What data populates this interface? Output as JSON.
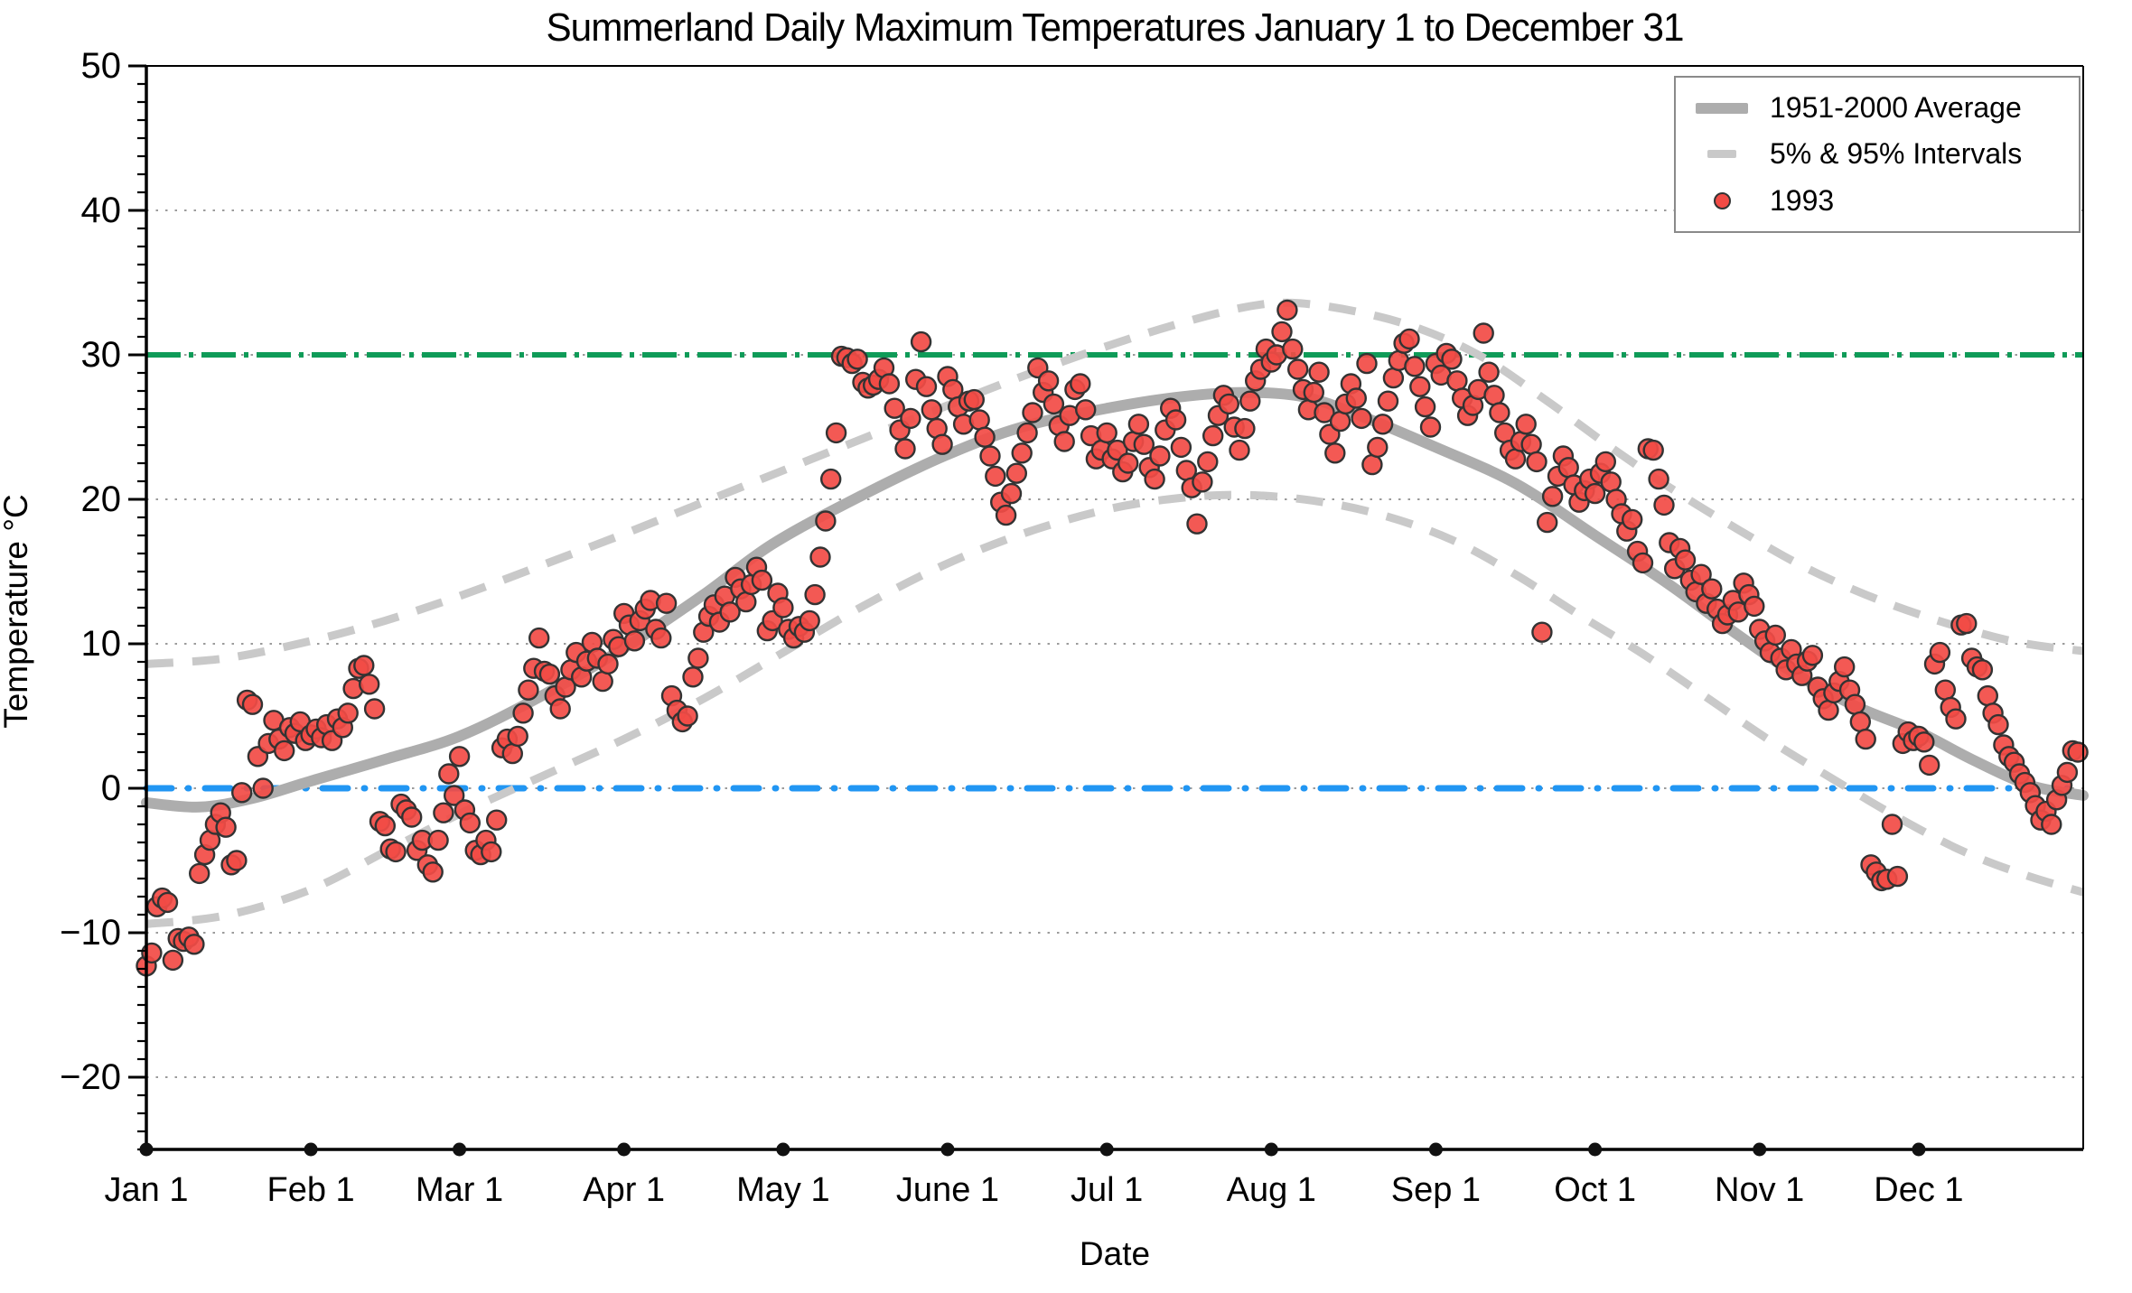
{
  "chart_data": {
    "type": "scatter",
    "title": "Summerland Daily Maximum Temperatures January 1 to December 31",
    "xlabel": "Date",
    "ylabel": "Temperature °C",
    "legend": {
      "items": [
        {
          "label": "1951-2000 Average",
          "swatch": "thick-gray-line"
        },
        {
          "label": "5% & 95% Intervals",
          "swatch": "gray-dash"
        },
        {
          "label": "1993",
          "swatch": "red-dot"
        }
      ]
    },
    "colors": {
      "average_line": "#adadad",
      "interval_line": "#c9c9c9",
      "point_fill": "#f24b45",
      "point_edge": "#333333",
      "green_ref": "#0f9b58",
      "blue_ref": "#2196f3",
      "grid": "#9b9b9b",
      "axis": "#000000"
    },
    "y_axis": {
      "min": -25,
      "max": 50,
      "major_ticks": [
        {
          "v": -20,
          "label": "−20"
        },
        {
          "v": -10,
          "label": "−10"
        },
        {
          "v": 0,
          "label": "0"
        },
        {
          "v": 10,
          "label": "10"
        },
        {
          "v": 20,
          "label": "20"
        },
        {
          "v": 30,
          "label": "30"
        },
        {
          "v": 40,
          "label": "40"
        },
        {
          "v": 50,
          "label": "50"
        }
      ],
      "minor_step": 1.25,
      "gridline_values": [
        -20,
        -10,
        0,
        10,
        20,
        30,
        40
      ],
      "grid_style": "dotted"
    },
    "x_axis": {
      "days_total": 365,
      "month_start_days": [
        0,
        31,
        59,
        90,
        120,
        151,
        181,
        212,
        243,
        273,
        304,
        334
      ],
      "month_labels": [
        "Jan 1",
        "Feb 1",
        "Mar 1",
        "Apr 1",
        "May 1",
        "June 1",
        "Jul 1",
        "Aug 1",
        "Sep 1",
        "Oct 1",
        "Nov 1",
        "Dec 1"
      ]
    },
    "ref_lines": [
      {
        "value": 30,
        "style": "dash-dot",
        "color_key": "green_ref"
      },
      {
        "value": 0,
        "style": "dash-dot-round",
        "color_key": "blue_ref"
      }
    ],
    "series": {
      "average_1951_2000": {
        "anchors": [
          [
            0,
            -1.0
          ],
          [
            10,
            -1.3
          ],
          [
            20,
            -0.7
          ],
          [
            31,
            0.5
          ],
          [
            45,
            2.0
          ],
          [
            59,
            3.6
          ],
          [
            74,
            6.3
          ],
          [
            90,
            9.7
          ],
          [
            105,
            13.4
          ],
          [
            118,
            16.9
          ],
          [
            135,
            20.3
          ],
          [
            151,
            23.1
          ],
          [
            165,
            25.0
          ],
          [
            181,
            26.3
          ],
          [
            195,
            27.1
          ],
          [
            207,
            27.4
          ],
          [
            218,
            27.1
          ],
          [
            228,
            25.9
          ],
          [
            243,
            23.6
          ],
          [
            258,
            21.1
          ],
          [
            273,
            17.5
          ],
          [
            287,
            14.1
          ],
          [
            300,
            10.6
          ],
          [
            310,
            8.1
          ],
          [
            322,
            5.7
          ],
          [
            334,
            3.9
          ],
          [
            344,
            2.0
          ],
          [
            355,
            0.2
          ],
          [
            365,
            -0.5
          ]
        ]
      },
      "upper_95": {
        "anchors": [
          [
            0,
            8.6
          ],
          [
            15,
            9.0
          ],
          [
            31,
            10.2
          ],
          [
            45,
            11.6
          ],
          [
            59,
            13.3
          ],
          [
            75,
            15.5
          ],
          [
            90,
            17.6
          ],
          [
            105,
            19.8
          ],
          [
            120,
            22.0
          ],
          [
            135,
            24.2
          ],
          [
            151,
            26.5
          ],
          [
            165,
            28.5
          ],
          [
            181,
            30.6
          ],
          [
            195,
            32.2
          ],
          [
            207,
            33.3
          ],
          [
            216,
            33.6
          ],
          [
            228,
            33.0
          ],
          [
            240,
            31.8
          ],
          [
            252,
            29.8
          ],
          [
            264,
            26.8
          ],
          [
            276,
            23.6
          ],
          [
            288,
            20.6
          ],
          [
            300,
            17.9
          ],
          [
            312,
            15.4
          ],
          [
            324,
            13.4
          ],
          [
            336,
            11.8
          ],
          [
            348,
            10.5
          ],
          [
            356,
            9.9
          ],
          [
            365,
            9.5
          ]
        ]
      },
      "lower_5": {
        "anchors": [
          [
            0,
            -9.4
          ],
          [
            15,
            -8.8
          ],
          [
            31,
            -7.0
          ],
          [
            46,
            -4.2
          ],
          [
            60,
            -1.6
          ],
          [
            75,
            0.9
          ],
          [
            90,
            3.4
          ],
          [
            105,
            6.2
          ],
          [
            120,
            9.4
          ],
          [
            135,
            12.6
          ],
          [
            150,
            15.4
          ],
          [
            165,
            17.6
          ],
          [
            181,
            19.3
          ],
          [
            195,
            20.1
          ],
          [
            207,
            20.3
          ],
          [
            220,
            19.9
          ],
          [
            233,
            18.9
          ],
          [
            246,
            17.2
          ],
          [
            258,
            14.8
          ],
          [
            270,
            12.0
          ],
          [
            282,
            9.3
          ],
          [
            294,
            6.3
          ],
          [
            306,
            3.3
          ],
          [
            318,
            0.6
          ],
          [
            330,
            -2.0
          ],
          [
            342,
            -4.3
          ],
          [
            354,
            -6.0
          ],
          [
            365,
            -7.2
          ]
        ]
      },
      "year_1993": {
        "values": [
          -12.3,
          -11.4,
          -8.2,
          -7.6,
          -7.9,
          -11.9,
          -10.4,
          -10.6,
          -10.3,
          -10.8,
          -5.9,
          -4.6,
          -3.6,
          -2.5,
          -1.7,
          -2.7,
          -5.3,
          -5.0,
          -0.3,
          6.1,
          5.8,
          2.2,
          0.0,
          3.1,
          4.7,
          3.4,
          2.6,
          4.2,
          3.8,
          4.6,
          3.3,
          3.7,
          4.1,
          3.5,
          4.4,
          3.3,
          4.8,
          4.2,
          5.2,
          6.9,
          8.3,
          8.5,
          7.2,
          5.5,
          -2.3,
          -2.6,
          -4.2,
          -4.4,
          -1.1,
          -1.5,
          -2.0,
          -4.3,
          -3.6,
          -5.3,
          -5.8,
          -3.6,
          -1.7,
          1.0,
          -0.5,
          2.2,
          -1.5,
          -2.4,
          -4.3,
          -4.6,
          -3.6,
          -4.4,
          -2.2,
          2.8,
          3.4,
          2.4,
          3.6,
          5.2,
          6.8,
          8.3,
          10.4,
          8.1,
          7.9,
          6.4,
          5.5,
          7.0,
          8.2,
          9.4,
          7.7,
          8.8,
          10.1,
          9.0,
          7.4,
          8.6,
          10.3,
          9.8,
          12.1,
          11.3,
          10.2,
          11.6,
          12.4,
          13.0,
          11.0,
          10.4,
          12.8,
          6.4,
          5.4,
          4.6,
          5.0,
          7.7,
          9.0,
          10.8,
          11.9,
          12.7,
          11.5,
          13.3,
          12.2,
          14.6,
          13.8,
          12.9,
          14.1,
          15.3,
          14.4,
          10.9,
          11.6,
          13.5,
          12.5,
          11.0,
          10.4,
          11.2,
          10.8,
          11.6,
          13.4,
          16.0,
          18.5,
          21.4,
          24.6,
          29.9,
          29.8,
          29.4,
          29.7,
          28.1,
          27.7,
          27.9,
          28.3,
          29.1,
          28.0,
          26.3,
          24.8,
          23.5,
          25.6,
          28.3,
          30.9,
          27.8,
          26.2,
          24.9,
          23.8,
          28.5,
          27.6,
          26.4,
          25.2,
          26.8,
          26.9,
          25.5,
          24.3,
          23.0,
          21.6,
          19.8,
          18.9,
          20.4,
          21.8,
          23.2,
          24.6,
          26.0,
          29.1,
          27.4,
          28.2,
          26.6,
          25.1,
          24.0,
          25.8,
          27.6,
          28.0,
          26.2,
          24.4,
          22.8,
          23.4,
          24.6,
          22.8,
          23.4,
          21.9,
          22.5,
          24.0,
          25.2,
          23.8,
          22.2,
          21.4,
          23.0,
          24.8,
          26.3,
          25.5,
          23.6,
          22.0,
          20.8,
          18.3,
          21.2,
          22.6,
          24.4,
          25.8,
          27.2,
          26.6,
          25.0,
          23.4,
          24.9,
          26.8,
          28.2,
          29.0,
          30.4,
          29.5,
          30.0,
          31.6,
          33.1,
          30.4,
          29.0,
          27.6,
          26.2,
          27.4,
          28.8,
          26.0,
          24.5,
          23.2,
          25.4,
          26.6,
          28.0,
          27.0,
          25.6,
          29.4,
          22.4,
          23.6,
          25.2,
          26.8,
          28.4,
          29.6,
          30.8,
          31.1,
          29.2,
          27.8,
          26.4,
          25.0,
          29.4,
          28.6,
          30.1,
          29.7,
          28.2,
          27.0,
          25.8,
          26.5,
          27.6,
          31.5,
          28.8,
          27.2,
          26.0,
          24.6,
          23.4,
          22.8,
          24.0,
          25.2,
          23.8,
          22.6,
          10.8,
          18.4,
          20.2,
          21.6,
          23.0,
          22.2,
          21.0,
          19.8,
          20.6,
          21.4,
          20.4,
          21.8,
          22.6,
          21.2,
          20.0,
          19.0,
          17.8,
          18.6,
          16.4,
          15.6,
          23.5,
          23.4,
          21.4,
          19.6,
          17.0,
          15.2,
          16.6,
          15.8,
          14.4,
          13.6,
          14.8,
          12.8,
          13.8,
          12.4,
          11.4,
          12.0,
          13.0,
          12.2,
          14.2,
          13.4,
          12.6,
          11.0,
          10.2,
          9.4,
          10.6,
          9.0,
          8.2,
          9.6,
          8.6,
          7.8,
          8.8,
          9.2,
          7.0,
          6.2,
          5.4,
          6.6,
          7.4,
          8.4,
          6.8,
          5.8,
          4.6,
          3.4,
          -5.3,
          -5.8,
          -6.4,
          -6.3,
          -2.5,
          -6.1,
          3.1,
          3.9,
          3.3,
          3.6,
          3.2,
          1.6,
          8.6,
          9.4,
          6.8,
          5.6,
          4.8,
          11.3,
          11.4,
          9.0,
          8.4,
          8.2,
          6.4,
          5.2,
          4.4,
          3.0,
          2.2,
          1.8,
          1.0,
          0.4,
          -0.3,
          -1.2,
          -2.2,
          -1.6,
          -2.5,
          -0.8,
          0.2,
          1.1,
          2.6,
          2.5
        ]
      }
    },
    "layout_hints": {
      "legend_position": "top-right",
      "grid": "dotted-horizontal-only"
    }
  }
}
